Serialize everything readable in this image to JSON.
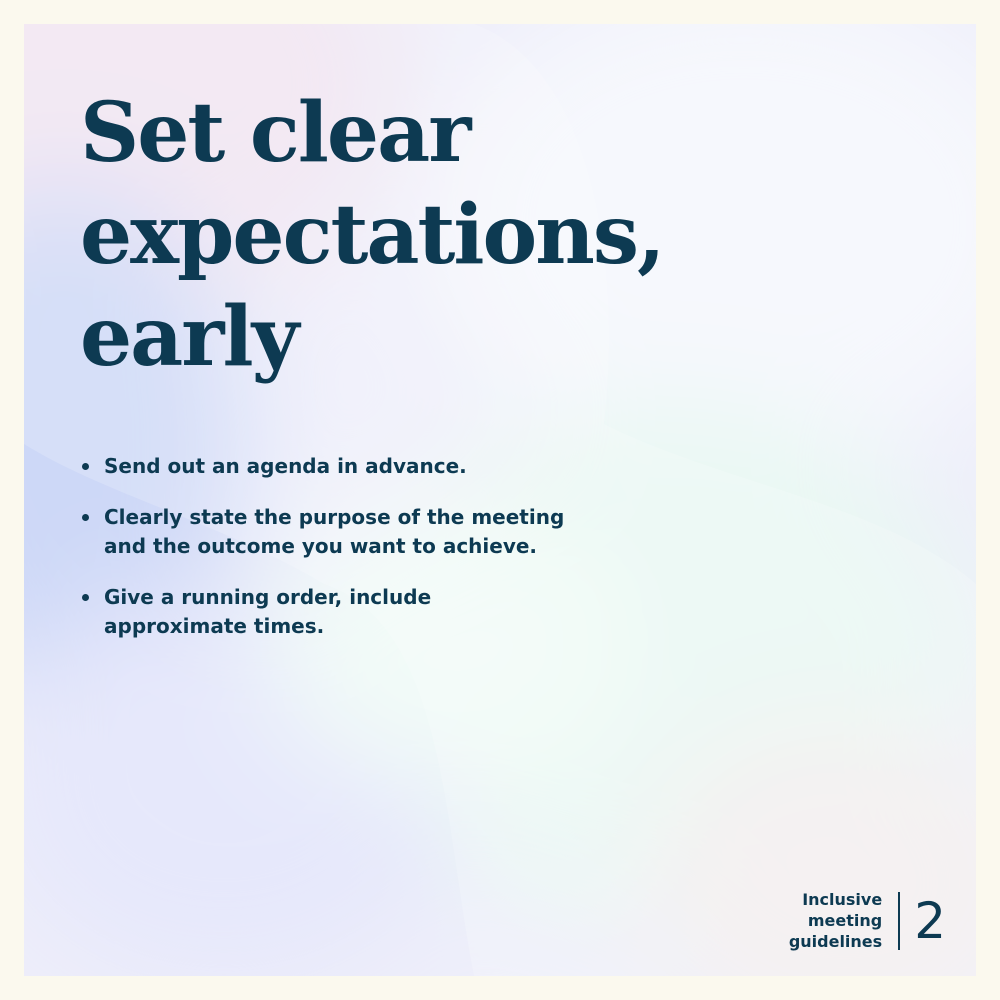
{
  "slide": {
    "title_lines": [
      "Set clear",
      "expectations,",
      "early"
    ],
    "bullets": [
      {
        "lines": [
          "Send out an agenda in advance."
        ]
      },
      {
        "lines": [
          "Clearly state the purpose of the meeting",
          "and the outcome you want to achieve."
        ]
      },
      {
        "lines": [
          "Give a running order, include",
          "approximate times."
        ]
      }
    ]
  },
  "footer": {
    "series_lines": [
      "Inclusive",
      "meeting",
      "guidelines"
    ],
    "page_number": "2"
  },
  "colors": {
    "text": "#0d3a52",
    "frame": "#fbf9ee"
  }
}
